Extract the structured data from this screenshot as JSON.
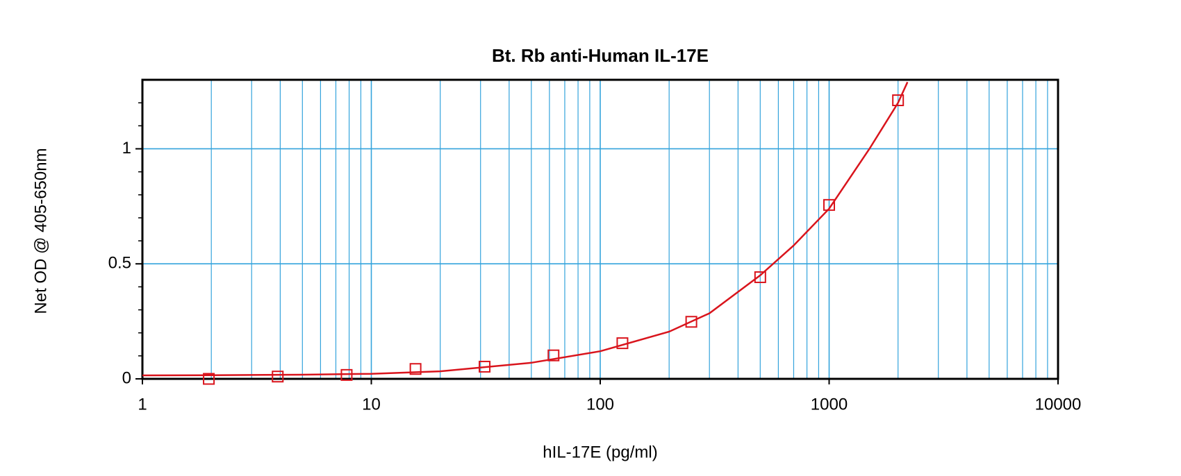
{
  "chart_data": {
    "type": "scatter",
    "title": "Bt. Rb anti-Human IL-17E",
    "x_label": "hIL-17E (pg/ml)",
    "y_label": "Net OD @ 405-650nm",
    "x_scale": "log",
    "grid": true,
    "x": [
      1.95,
      3.9,
      7.8,
      15.6,
      31.25,
      62.5,
      125,
      250,
      500,
      1000,
      2000
    ],
    "series": [
      {
        "color": "#d9141c",
        "values": [
          0.0,
          0.01,
          0.017,
          0.043,
          0.053,
          0.102,
          0.155,
          0.248,
          0.442,
          0.756,
          1.211
        ]
      }
    ],
    "fit": {
      "color": "#d9141c",
      "x": [
        1,
        2,
        5,
        10,
        20,
        50,
        100,
        200,
        300,
        500,
        700,
        1000,
        1500,
        2000,
        2200
      ],
      "values": [
        0.015,
        0.016,
        0.018,
        0.022,
        0.033,
        0.07,
        0.12,
        0.205,
        0.285,
        0.45,
        0.58,
        0.74,
        1.0,
        1.2,
        1.29
      ]
    },
    "xlim": [
      1,
      10000
    ],
    "xticks": [
      1,
      10,
      100,
      1000,
      10000
    ],
    "xminorticks": [
      2,
      3,
      4,
      5,
      6,
      7,
      8,
      9,
      20,
      30,
      40,
      50,
      60,
      70,
      80,
      90,
      200,
      300,
      400,
      500,
      600,
      700,
      800,
      900,
      2000,
      3000,
      4000,
      5000,
      6000,
      7000,
      8000,
      9000
    ],
    "ylim": [
      0,
      1.3
    ],
    "yticks": [
      0,
      0.5,
      1
    ],
    "yminorticks": [
      0.1,
      0.2,
      0.3,
      0.4,
      0.6,
      0.7,
      0.8,
      0.9,
      1.1,
      1.2
    ],
    "grid_color": "#33a3dc"
  }
}
